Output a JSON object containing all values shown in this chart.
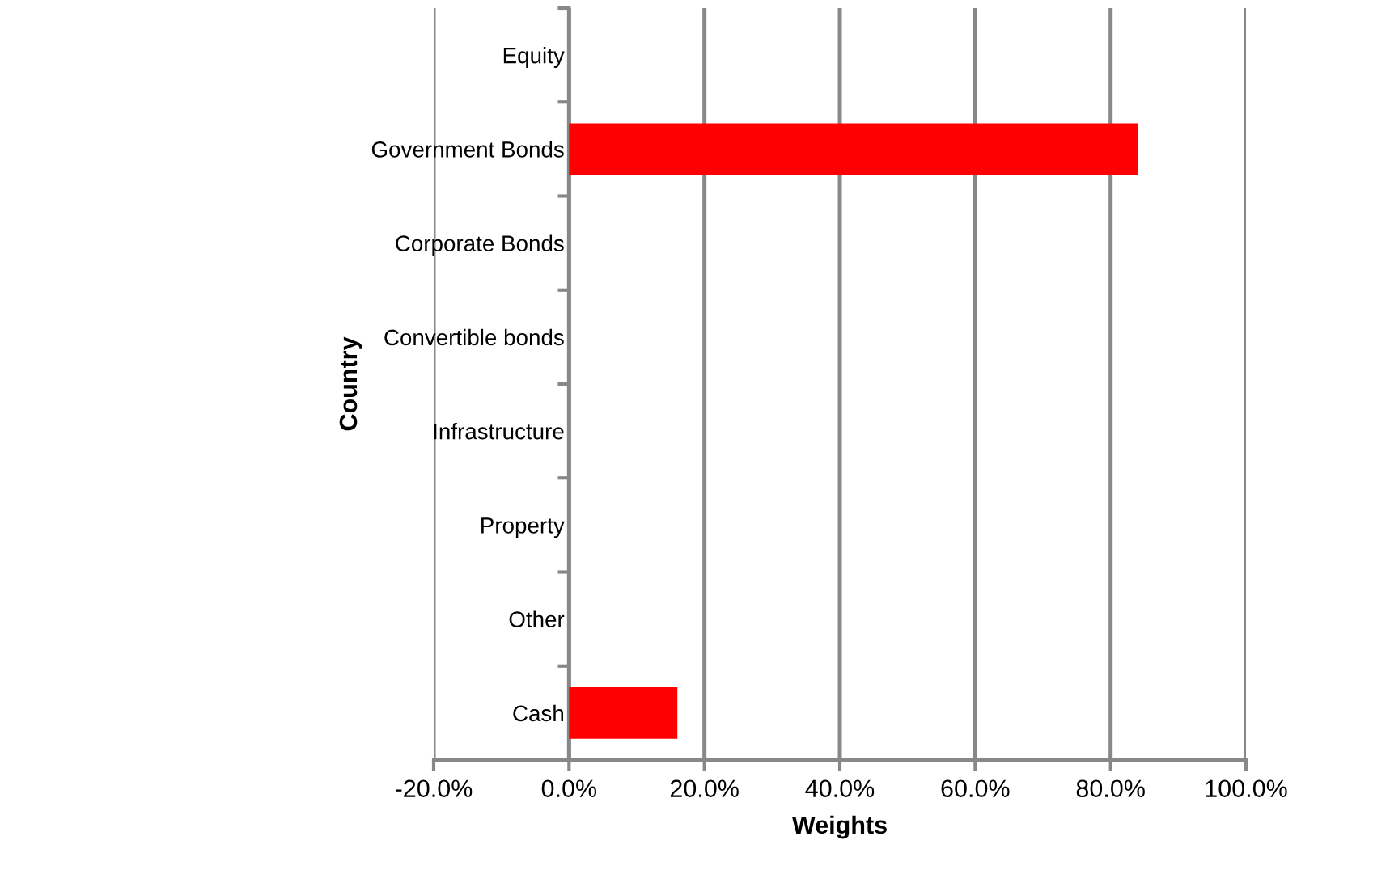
{
  "chart_data": {
    "type": "bar",
    "orientation": "horizontal",
    "xlabel": "Weights",
    "ylabel": "Country",
    "categories": [
      "Equity",
      "Government Bonds",
      "Corporate Bonds",
      "Convertible bonds",
      "Infrastructure",
      "Property",
      "Other",
      "Cash"
    ],
    "values": [
      0,
      84,
      0,
      0,
      0,
      0,
      0,
      16
    ],
    "color": "#ff0000",
    "xlim": [
      -20,
      100
    ],
    "xticks": [
      {
        "value": -20,
        "label": "-20.0%"
      },
      {
        "value": 0,
        "label": "0.0%"
      },
      {
        "value": 20,
        "label": "20.0%"
      },
      {
        "value": 40,
        "label": "40.0%"
      },
      {
        "value": 60,
        "label": "60.0%"
      },
      {
        "value": 80,
        "label": "80.0%"
      },
      {
        "value": 100,
        "label": "100.0%"
      }
    ],
    "grid": "x",
    "legend": false
  }
}
